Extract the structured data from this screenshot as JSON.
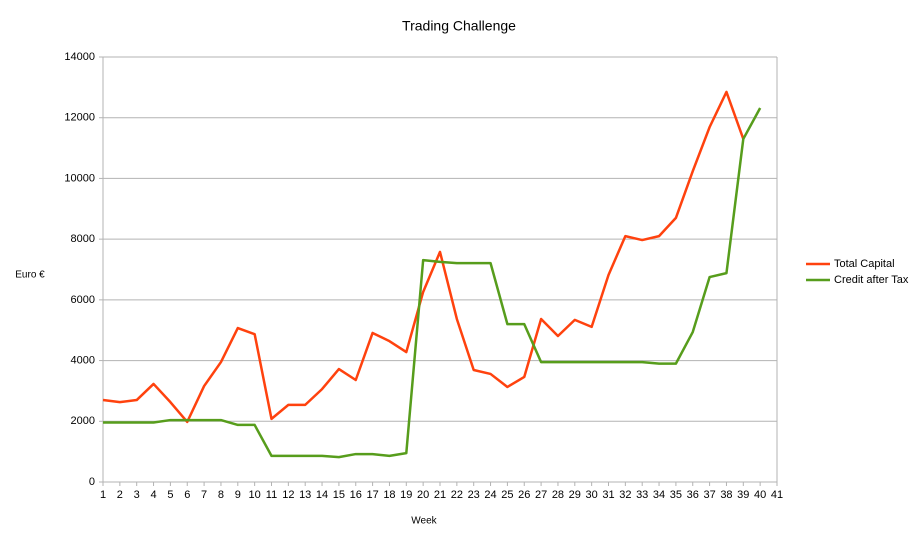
{
  "chart_data": {
    "type": "line",
    "title": "Trading Challenge",
    "x_label": "Week",
    "y_label": "Euro €",
    "x": [
      1,
      2,
      3,
      4,
      5,
      6,
      7,
      8,
      9,
      10,
      11,
      12,
      13,
      14,
      15,
      16,
      17,
      18,
      19,
      20,
      21,
      22,
      23,
      24,
      25,
      26,
      27,
      28,
      29,
      30,
      31,
      32,
      33,
      34,
      35,
      36,
      37,
      38,
      39,
      40
    ],
    "series": [
      {
        "name": "Total Capital",
        "color": "#ff420e",
        "values": [
          2700,
          2630,
          2700,
          3230,
          2630,
          1980,
          3160,
          3950,
          5070,
          4870,
          2080,
          2540,
          2540,
          3060,
          3720,
          3360,
          4910,
          4640,
          4280,
          6260,
          7580,
          5370,
          3690,
          3560,
          3130,
          3460,
          5370,
          4810,
          5340,
          5110,
          6820,
          8100,
          7970,
          8100,
          8700,
          10240,
          11690,
          12850,
          11300,
          null
        ]
      },
      {
        "name": "Credit after Tax",
        "color": "#579d1c",
        "values": [
          1960,
          1960,
          1960,
          1960,
          2040,
          2040,
          2040,
          2040,
          1880,
          1880,
          860,
          860,
          860,
          860,
          820,
          920,
          920,
          860,
          950,
          7310,
          7250,
          7210,
          7210,
          7210,
          5200,
          5200,
          3950,
          3950,
          3950,
          3950,
          3950,
          3950,
          3950,
          3900,
          3900,
          4940,
          6750,
          6880,
          11300,
          12320
        ]
      }
    ],
    "xlim": [
      1,
      41
    ],
    "xticks": [
      1,
      2,
      3,
      4,
      5,
      6,
      7,
      8,
      9,
      10,
      11,
      12,
      13,
      14,
      15,
      16,
      17,
      18,
      19,
      20,
      21,
      22,
      23,
      24,
      25,
      26,
      27,
      28,
      29,
      30,
      31,
      32,
      33,
      34,
      35,
      36,
      37,
      38,
      39,
      40,
      41
    ],
    "ylim": [
      0,
      14000
    ],
    "yticks": [
      0,
      2000,
      4000,
      6000,
      8000,
      10000,
      12000,
      14000
    ],
    "grid": true,
    "legend": "right"
  }
}
